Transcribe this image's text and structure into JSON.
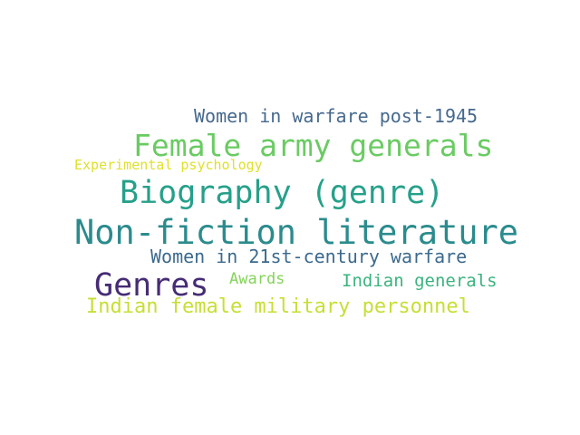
{
  "words": [
    {
      "text": "Women in warfare post-1945",
      "color": "#46698e"
    },
    {
      "text": "Female army generals",
      "color": "#6acb63"
    },
    {
      "text": "Experimental psychology",
      "color": "#dfe02c"
    },
    {
      "text": "Biography (genre)",
      "color": "#26a08a"
    },
    {
      "text": "Non-fiction literature",
      "color": "#2b8b8d"
    },
    {
      "text": "Women in 21st-century warfare",
      "color": "#3c6a8d"
    },
    {
      "text": "Genres",
      "color": "#462c74"
    },
    {
      "text": "Awards",
      "color": "#85d35a"
    },
    {
      "text": "Indian generals",
      "color": "#3bb37e"
    },
    {
      "text": "Indian female military personnel",
      "color": "#c8de35"
    }
  ]
}
